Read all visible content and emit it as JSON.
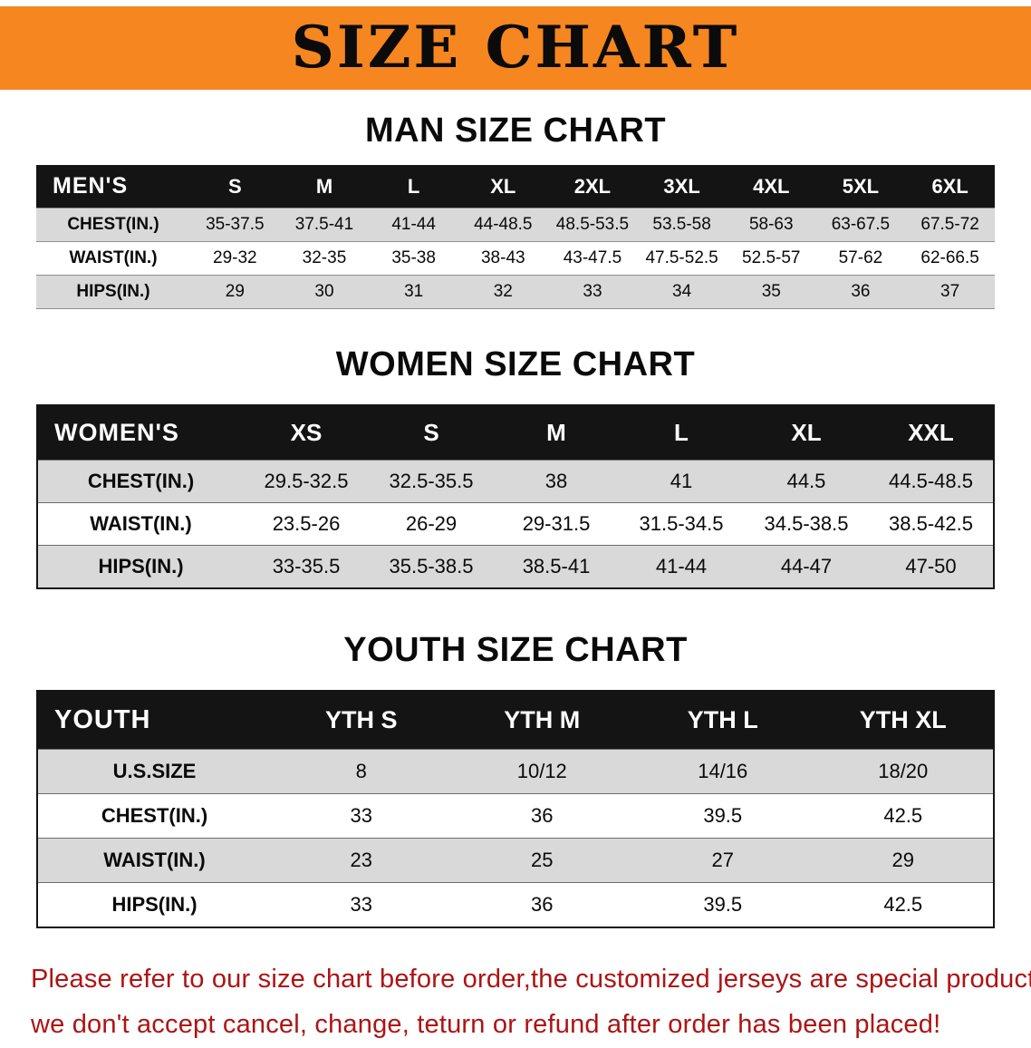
{
  "banner": {
    "title": "SIZE CHART",
    "bg": "#f6861f"
  },
  "sections": [
    {
      "heading": "MAN SIZE CHART",
      "table": {
        "header": [
          "MEN'S",
          "S",
          "M",
          "L",
          "XL",
          "2XL",
          "3XL",
          "4XL",
          "5XL",
          "6XL"
        ],
        "rows": [
          [
            "CHEST(IN.)",
            "35-37.5",
            "37.5-41",
            "41-44",
            "44-48.5",
            "48.5-53.5",
            "53.5-58",
            "58-63",
            "63-67.5",
            "67.5-72"
          ],
          [
            "WAIST(IN.)",
            "29-32",
            "32-35",
            "35-38",
            "38-43",
            "43-47.5",
            "47.5-52.5",
            "52.5-57",
            "57-62",
            "62-66.5"
          ],
          [
            "HIPS(IN.)",
            "29",
            "30",
            "31",
            "32",
            "33",
            "34",
            "35",
            "36",
            "37"
          ]
        ]
      }
    },
    {
      "heading": "WOMEN SIZE CHART",
      "table": {
        "header": [
          "WOMEN'S",
          "XS",
          "S",
          "M",
          "L",
          "XL",
          "XXL"
        ],
        "rows": [
          [
            "CHEST(IN.)",
            "29.5-32.5",
            "32.5-35.5",
            "38",
            "41",
            "44.5",
            "44.5-48.5"
          ],
          [
            "WAIST(IN.)",
            "23.5-26",
            "26-29",
            "29-31.5",
            "31.5-34.5",
            "34.5-38.5",
            "38.5-42.5"
          ],
          [
            "HIPS(IN.)",
            "33-35.5",
            "35.5-38.5",
            "38.5-41",
            "41-44",
            "44-47",
            "47-50"
          ]
        ]
      }
    },
    {
      "heading": "YOUTH SIZE CHART",
      "table": {
        "header": [
          "YOUTH",
          "YTH S",
          "YTH M",
          "YTH L",
          "YTH XL"
        ],
        "rows": [
          [
            "U.S.SIZE",
            "8",
            "10/12",
            "14/16",
            "18/20"
          ],
          [
            "CHEST(IN.)",
            "33",
            "36",
            "39.5",
            "42.5"
          ],
          [
            "WAIST(IN.)",
            "23",
            "25",
            "27",
            "29"
          ],
          [
            "HIPS(IN.)",
            "33",
            "36",
            "39.5",
            "42.5"
          ]
        ]
      }
    }
  ],
  "disclaimer": {
    "color": "#ad1414",
    "lines": [
      "Please refer to our size chart before order,the customized jerseys are special products,",
      "we don't accept cancel, change, teturn or refund after order has been placed!"
    ]
  }
}
